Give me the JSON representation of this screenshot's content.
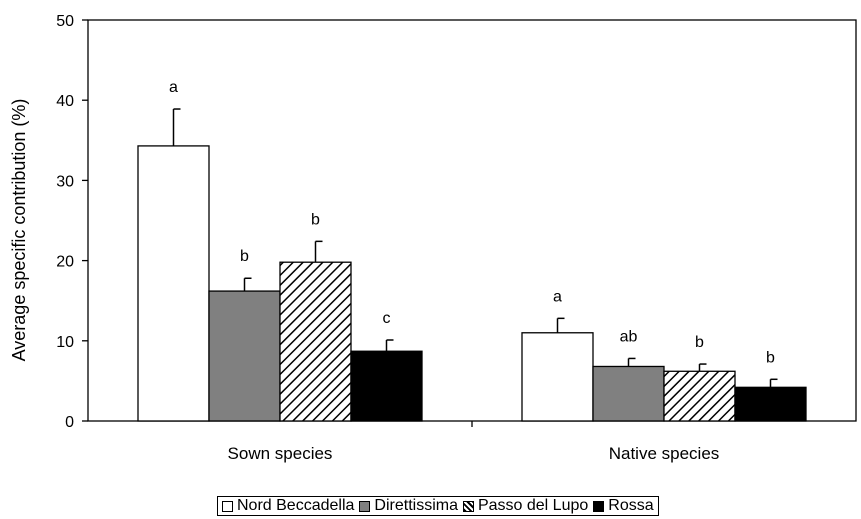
{
  "chart_data": {
    "type": "bar",
    "title": "",
    "xlabel": "",
    "ylabel": "Average specific contribution (%)",
    "ylim": [
      0,
      50
    ],
    "yticks": [
      "0",
      "10",
      "20",
      "30",
      "40",
      "50"
    ],
    "grid": false,
    "legend_position": "bottom",
    "categories": [
      "Sown species",
      "Native species"
    ],
    "series": [
      {
        "name": "Nord Beccadella",
        "fill": "white",
        "color": "#ffffff",
        "values": [
          34.3,
          11.0
        ],
        "errors": [
          4.6,
          1.8
        ],
        "labels": [
          "a",
          "a"
        ]
      },
      {
        "name": "Direttissima",
        "fill": "solid",
        "color": "#808080",
        "values": [
          16.2,
          6.8
        ],
        "errors": [
          1.6,
          1.0
        ],
        "labels": [
          "b",
          "ab"
        ]
      },
      {
        "name": "Passo del Lupo",
        "fill": "hatch",
        "color": "#000000",
        "values": [
          19.8,
          6.2
        ],
        "errors": [
          2.6,
          0.9
        ],
        "labels": [
          "b",
          "b"
        ]
      },
      {
        "name": "Rossa",
        "fill": "solid",
        "color": "#000000",
        "values": [
          8.7,
          4.2
        ],
        "errors": [
          1.4,
          1.0
        ],
        "labels": [
          "c",
          "b"
        ]
      }
    ]
  }
}
